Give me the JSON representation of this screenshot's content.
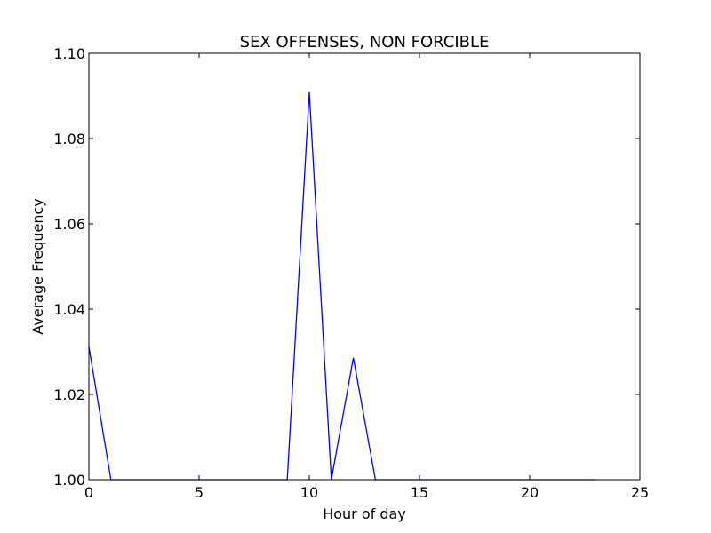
{
  "chart_data": {
    "type": "line",
    "title": "SEX OFFENSES, NON FORCIBLE",
    "xlabel": "Hour of day",
    "ylabel": "Average Frequency",
    "xlim": [
      0,
      25
    ],
    "ylim": [
      1.0,
      1.1
    ],
    "xticks": [
      0,
      5,
      10,
      15,
      20,
      25
    ],
    "xtick_labels": [
      "0",
      "5",
      "10",
      "15",
      "20",
      "25"
    ],
    "yticks": [
      1.0,
      1.02,
      1.04,
      1.06,
      1.08,
      1.1
    ],
    "ytick_labels": [
      "1.00",
      "1.02",
      "1.04",
      "1.06",
      "1.08",
      "1.10"
    ],
    "grid": false,
    "series": [
      {
        "color": "#0000ff",
        "x": [
          0,
          1,
          2,
          3,
          4,
          5,
          6,
          7,
          8,
          9,
          10,
          11,
          12,
          13,
          14,
          15,
          16,
          17,
          18,
          19,
          20,
          21,
          22,
          23
        ],
        "values": [
          1.0312,
          1.0,
          1.0,
          1.0,
          1.0,
          1.0,
          1.0,
          1.0,
          1.0,
          1.0,
          1.0909,
          1.0,
          1.0286,
          1.0,
          1.0,
          1.0,
          1.0,
          1.0,
          1.0,
          1.0,
          1.0,
          1.0,
          1.0,
          1.0
        ]
      }
    ]
  }
}
